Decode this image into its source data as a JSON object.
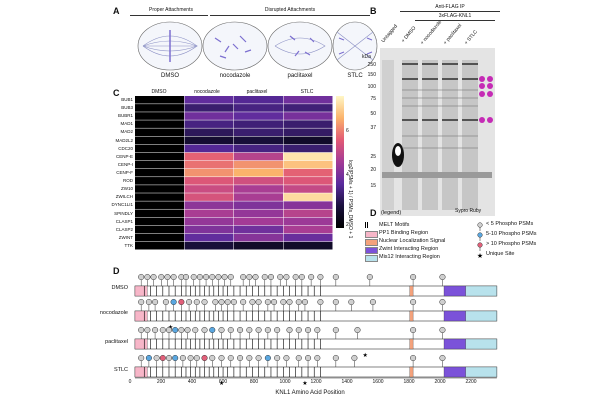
{
  "panel_a": {
    "label": "A",
    "header_proper": "Proper Attachments",
    "header_disrupted": "Disrupted Attachments",
    "conditions": [
      "DMSO",
      "nocodazole",
      "paclitaxel",
      "STLC"
    ]
  },
  "panel_b": {
    "label": "B",
    "title": "Anti-FLAG IP",
    "subtitle": "3xFLAG-KNL1",
    "lanes": [
      "Untagged",
      "+ DMSO",
      "+ nocodazole",
      "+ paclitaxel",
      "+ STLC"
    ],
    "kda_label": "kDa",
    "markers": [
      "250",
      "150",
      "100",
      "75",
      "50",
      "37",
      "25",
      "20",
      "15"
    ],
    "stain": "Sypro Ruby"
  },
  "panel_c": {
    "label": "C",
    "columns": [
      "DMSO",
      "nocodazole",
      "paclitaxel",
      "STLC"
    ],
    "rows": [
      "BUB1",
      "BUB3",
      "BUBR1",
      "MAD1",
      "MAD2",
      "MAD2L2",
      "CDC20",
      "CENP-E",
      "CENP-I",
      "CENP-F",
      "ROD",
      "ZW10",
      "ZWILCH",
      "DYNC1LI1",
      "SPINDLY",
      "CLASP1",
      "CLASP2",
      "ZWINT",
      "TTK"
    ],
    "colorbar_label": "log2(PSMs + 1) / PSMs_DMSO + 1",
    "colorbar_ticks": [
      "6",
      "4",
      "2"
    ]
  },
  "panel_d_legend": {
    "title": "D",
    "title_suffix": "(legend)",
    "items": [
      "MELT Motifs",
      "PP1 Binding Region",
      "Nuclear Localization Signal",
      "Zwint Interacting Region",
      "Mis12 Interacting Region"
    ],
    "psm_items": [
      "< 5 Phospho PSMs",
      "5-10 Phospho PSMs",
      "> 10 Phospho PSMs"
    ],
    "unique": "Unique Site"
  },
  "panel_d": {
    "label": "D",
    "tracks": [
      "DMSO",
      "nocodazole",
      "paclitaxel",
      "STLC"
    ],
    "xaxis_label": "KNL1 Amino Acid Position",
    "ticks": [
      "0",
      "200",
      "400",
      "600",
      "800",
      "1000",
      "1200",
      "1400",
      "1600",
      "1800",
      "2000",
      "2200"
    ]
  },
  "colors": {
    "pp1": "#f7b6c8",
    "nls": "#f4a27c",
    "zwint": "#7b52d9",
    "mis12": "#b8e2ec",
    "lolli_low": "#cfcfcf",
    "lolli_mid": "#5aa7e0",
    "lolli_high": "#e2607a"
  },
  "chart_data": {
    "type": "heatmap",
    "title": "",
    "xlabel": "",
    "ylabel": "",
    "categories": [
      "DMSO",
      "nocodazole",
      "paclitaxel",
      "STLC"
    ],
    "rows": [
      "BUB1",
      "BUB3",
      "BUBR1",
      "MAD1",
      "MAD2",
      "MAD2L2",
      "CDC20",
      "CENP-E",
      "CENP-I",
      "CENP-F",
      "ROD",
      "ZW10",
      "ZWILCH",
      "DYNC1LI1",
      "SPINDLY",
      "CLASP1",
      "CLASP2",
      "ZWINT",
      "TTK"
    ],
    "values": [
      [
        0,
        2.6,
        2.4,
        2.8
      ],
      [
        0,
        2.0,
        2.2,
        2.1
      ],
      [
        0,
        2.8,
        2.6,
        2.9
      ],
      [
        0,
        2.2,
        2.1,
        2.0
      ],
      [
        0,
        1.8,
        2.0,
        1.9
      ],
      [
        0,
        1.2,
        1.4,
        1.0
      ],
      [
        0,
        2.4,
        2.2,
        2.0
      ],
      [
        0,
        4.6,
        3.8,
        6.6
      ],
      [
        0,
        4.8,
        5.2,
        5.9
      ],
      [
        0,
        5.2,
        5.6,
        4.6
      ],
      [
        0,
        4.4,
        4.2,
        4.4
      ],
      [
        0,
        4.1,
        3.6,
        4.0
      ],
      [
        0,
        4.3,
        3.6,
        6.4
      ],
      [
        0,
        3.2,
        3.0,
        3.1
      ],
      [
        0,
        3.6,
        3.3,
        3.8
      ],
      [
        0,
        3.3,
        3.5,
        3.4
      ],
      [
        0,
        3.0,
        2.8,
        3.6
      ],
      [
        0,
        2.6,
        3.1,
        2.7
      ],
      [
        0,
        1.4,
        1.0,
        1.0
      ]
    ],
    "range": [
      0,
      7
    ]
  }
}
